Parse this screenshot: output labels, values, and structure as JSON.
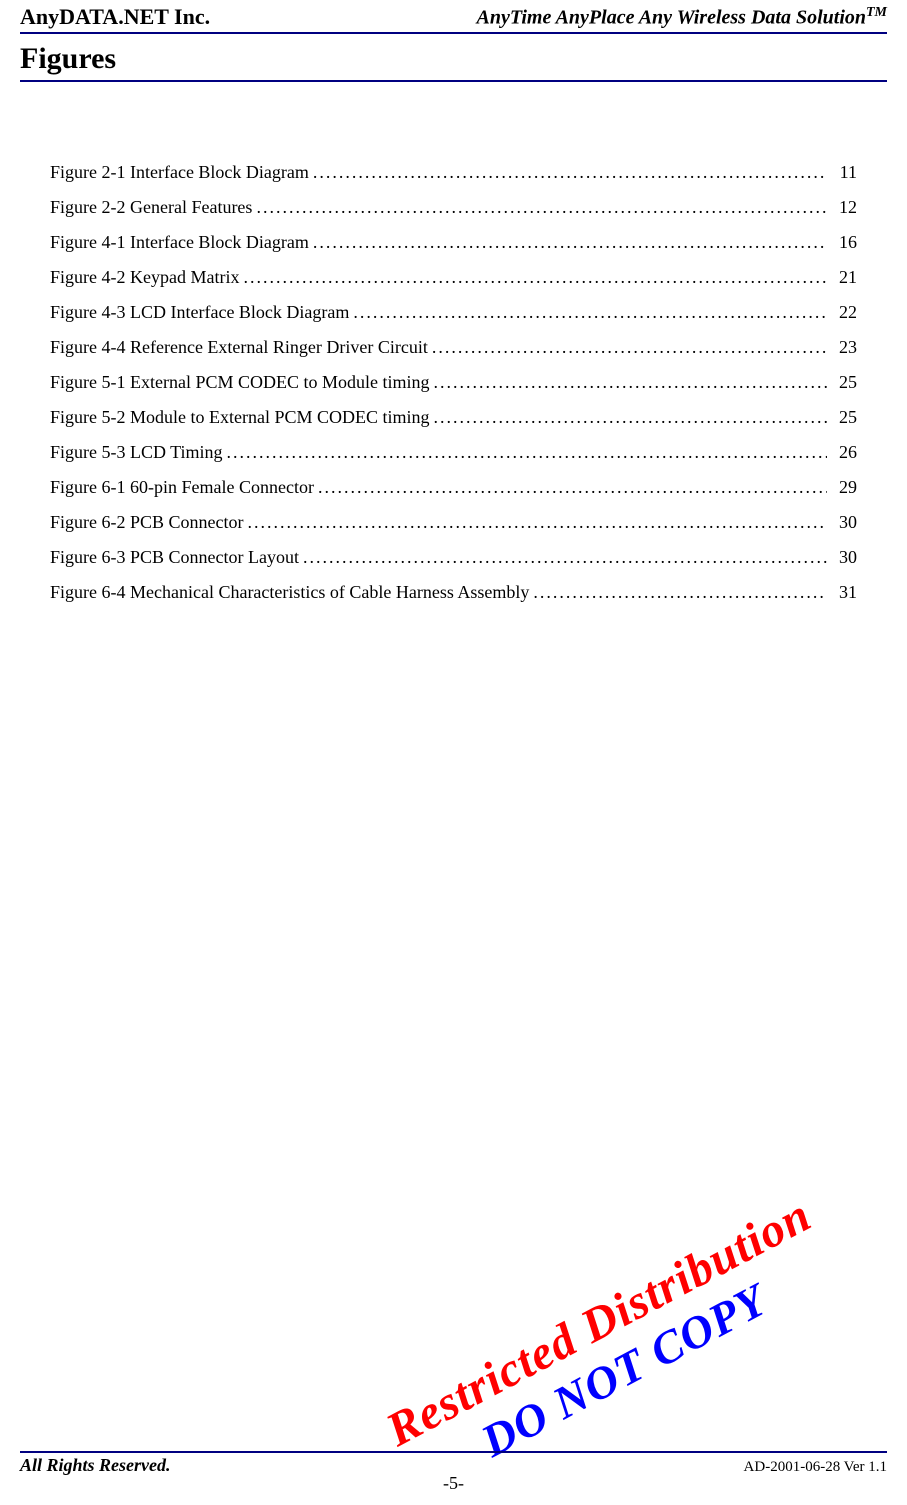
{
  "header": {
    "company": "AnyDATA.NET Inc.",
    "tagline": "AnyTime AnyPlace Any Wireless Data Solution",
    "tagline_tm": "TM"
  },
  "section_title": "Figures",
  "toc": [
    {
      "label": "Figure 2-1 Interface Block Diagram",
      "page": "11"
    },
    {
      "label": "Figure 2-2 General Features",
      "page": "12"
    },
    {
      "label": "Figure 4-1 Interface Block Diagram",
      "page": "16"
    },
    {
      "label": "Figure 4-2 Keypad Matrix",
      "page": "21"
    },
    {
      "label": "Figure 4-3 LCD Interface Block Diagram",
      "page": "22"
    },
    {
      "label": "Figure 4-4 Reference External Ringer Driver Circuit",
      "page": "23"
    },
    {
      "label": "Figure 5-1 External PCM CODEC to Module timing",
      "page": "25"
    },
    {
      "label": "Figure 5-2 Module to External PCM CODEC timing",
      "page": "25"
    },
    {
      "label": "Figure 5-3 LCD Timing",
      "page": "26"
    },
    {
      "label": "Figure 6-1 60-pin Female Connector",
      "page": "29"
    },
    {
      "label": "Figure 6-2 PCB Connector",
      "page": "30"
    },
    {
      "label": "Figure 6-3 PCB Connector Layout",
      "page": "30"
    },
    {
      "label": "Figure 6-4 Mechanical Characteristics of Cable Harness Assembly",
      "page": "31"
    }
  ],
  "watermark": {
    "line1": "Restricted Distribution",
    "line2": "DO NOT COPY"
  },
  "footer": {
    "left": "All Rights Reserved.",
    "center": "-5-",
    "right": "AD-2001-06-28 Ver 1.1"
  },
  "colors": {
    "rule": "#000080",
    "watermark_line1": "#ff0000",
    "watermark_line2": "#0000ff",
    "text": "#000000",
    "background": "#ffffff"
  },
  "typography": {
    "base_family": "Times New Roman",
    "header_left_size_pt": 17,
    "header_right_size_pt": 15,
    "section_title_size_pt": 22,
    "toc_size_pt": 14,
    "footer_size_pt": 14,
    "watermark_size_pt": 36
  }
}
